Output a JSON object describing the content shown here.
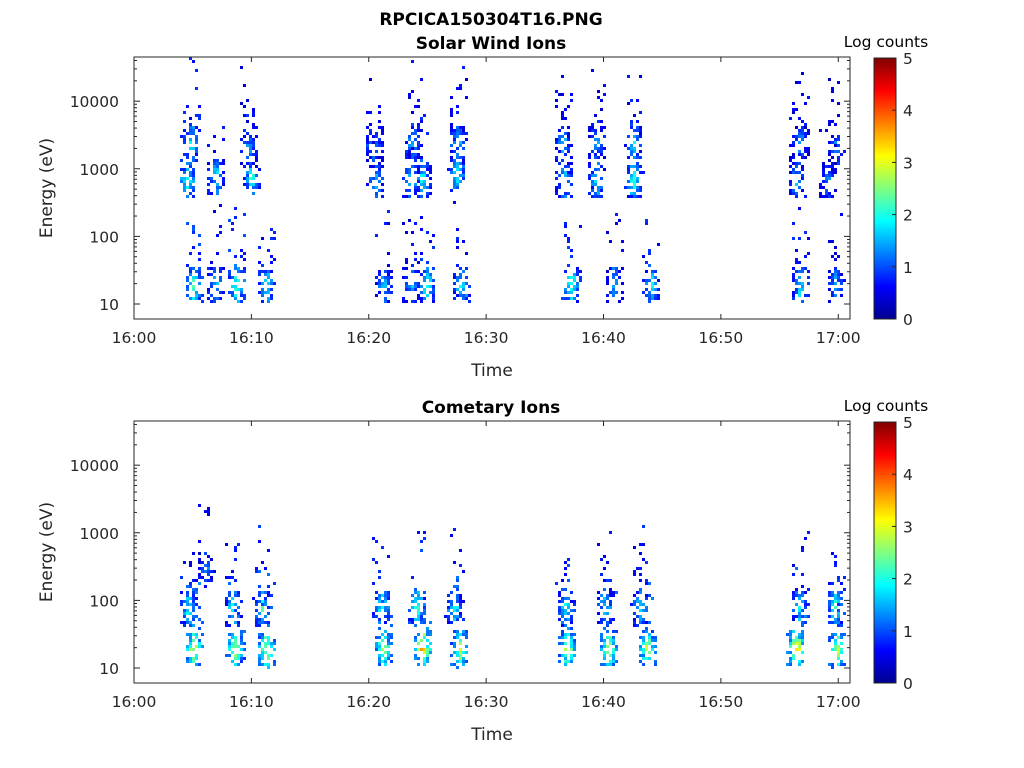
{
  "figure": {
    "title": "RPCICA150304T16.PNG"
  },
  "colorbar_ticks": [
    "0",
    "1",
    "2",
    "3",
    "4",
    "5"
  ],
  "chart_data": [
    {
      "type": "heatmap",
      "title": "Solar Wind Ions",
      "xlabel": "Time",
      "ylabel": "Energy (eV)",
      "colorbar_label": "Log counts",
      "colorbar_range": [
        0,
        5
      ],
      "colormap": "jet",
      "y_scale": "log",
      "ylim": [
        6,
        45000
      ],
      "xlim": [
        "16:00",
        "17:01"
      ],
      "x_ticks": [
        "16:00",
        "16:10",
        "16:20",
        "16:30",
        "16:40",
        "16:50",
        "17:00"
      ],
      "y_ticks": [
        "10",
        "100",
        "1000",
        "10000"
      ],
      "clusters": [
        {
          "t": "16:04:25",
          "energy": 700,
          "level": 2.2
        },
        {
          "t": "16:04:50",
          "energy": 2500,
          "level": 2.0
        },
        {
          "t": "16:06:55",
          "energy": 800,
          "level": 1.8
        },
        {
          "t": "16:09:55",
          "energy": 750,
          "level": 2.2
        },
        {
          "t": "16:09:40",
          "energy": 2000,
          "level": 1.6
        },
        {
          "t": "16:05:00",
          "energy": 20,
          "level": 2.5
        },
        {
          "t": "16:06:50",
          "energy": 20,
          "level": 1.8
        },
        {
          "t": "16:08:40",
          "energy": 20,
          "level": 2.4
        },
        {
          "t": "16:11:10",
          "energy": 20,
          "level": 2.0
        },
        {
          "t": "16:20:30",
          "energy": 700,
          "level": 1.6
        },
        {
          "t": "16:20:20",
          "energy": 2500,
          "level": 1.5
        },
        {
          "t": "16:23:30",
          "energy": 700,
          "level": 1.8
        },
        {
          "t": "16:24:30",
          "energy": 700,
          "level": 2.0
        },
        {
          "t": "16:23:40",
          "energy": 2500,
          "level": 1.7
        },
        {
          "t": "16:27:25",
          "energy": 900,
          "level": 2.0
        },
        {
          "t": "16:27:30",
          "energy": 2500,
          "level": 1.8
        },
        {
          "t": "16:21:10",
          "energy": 20,
          "level": 1.8
        },
        {
          "t": "16:23:30",
          "energy": 20,
          "level": 1.6
        },
        {
          "t": "16:24:50",
          "energy": 20,
          "level": 2.2
        },
        {
          "t": "16:27:50",
          "energy": 20,
          "level": 2.0
        },
        {
          "t": "16:36:30",
          "energy": 700,
          "level": 1.8
        },
        {
          "t": "16:36:30",
          "energy": 2500,
          "level": 1.7
        },
        {
          "t": "16:39:20",
          "energy": 700,
          "level": 1.9
        },
        {
          "t": "16:39:20",
          "energy": 2500,
          "level": 1.6
        },
        {
          "t": "16:42:30",
          "energy": 700,
          "level": 2.2
        },
        {
          "t": "16:42:30",
          "energy": 2500,
          "level": 1.8
        },
        {
          "t": "16:37:10",
          "energy": 20,
          "level": 2.3
        },
        {
          "t": "16:40:50",
          "energy": 20,
          "level": 1.7
        },
        {
          "t": "16:44:00",
          "energy": 20,
          "level": 2.0
        },
        {
          "t": "16:56:20",
          "energy": 700,
          "level": 1.6
        },
        {
          "t": "16:56:40",
          "energy": 2500,
          "level": 1.5
        },
        {
          "t": "16:59:00",
          "energy": 700,
          "level": 1.3
        },
        {
          "t": "16:59:40",
          "energy": 2000,
          "level": 1.4
        },
        {
          "t": "16:56:40",
          "energy": 20,
          "level": 2.0
        },
        {
          "t": "16:59:40",
          "energy": 20,
          "level": 1.6
        }
      ]
    },
    {
      "type": "heatmap",
      "title": "Cometary Ions",
      "xlabel": "Time",
      "ylabel": "Energy (eV)",
      "colorbar_label": "Log counts",
      "colorbar_range": [
        0,
        5
      ],
      "colormap": "jet",
      "y_scale": "log",
      "ylim": [
        6,
        45000
      ],
      "xlim": [
        "16:00",
        "17:01"
      ],
      "x_ticks": [
        "16:00",
        "16:10",
        "16:20",
        "16:30",
        "16:40",
        "16:50",
        "17:00"
      ],
      "y_ticks": [
        "10",
        "100",
        "1000",
        "10000"
      ],
      "clusters": [
        {
          "t": "16:05:00",
          "energy": 20,
          "level": 3.2
        },
        {
          "t": "16:04:30",
          "energy": 80,
          "level": 2.0
        },
        {
          "t": "16:06:00",
          "energy": 300,
          "level": 1.3
        },
        {
          "t": "16:08:30",
          "energy": 20,
          "level": 3.0
        },
        {
          "t": "16:08:20",
          "energy": 80,
          "level": 2.0
        },
        {
          "t": "16:11:10",
          "energy": 20,
          "level": 3.0
        },
        {
          "t": "16:10:50",
          "energy": 80,
          "level": 2.2
        },
        {
          "t": "16:21:10",
          "energy": 20,
          "level": 3.0
        },
        {
          "t": "16:21:00",
          "energy": 80,
          "level": 2.2
        },
        {
          "t": "16:24:30",
          "energy": 20,
          "level": 3.6
        },
        {
          "t": "16:24:00",
          "energy": 80,
          "level": 2.4
        },
        {
          "t": "16:27:40",
          "energy": 20,
          "level": 3.0
        },
        {
          "t": "16:27:10",
          "energy": 80,
          "level": 2.0
        },
        {
          "t": "16:36:50",
          "energy": 20,
          "level": 3.0
        },
        {
          "t": "16:36:40",
          "energy": 80,
          "level": 2.0
        },
        {
          "t": "16:40:20",
          "energy": 20,
          "level": 3.0
        },
        {
          "t": "16:40:00",
          "energy": 80,
          "level": 2.0
        },
        {
          "t": "16:43:40",
          "energy": 20,
          "level": 3.0
        },
        {
          "t": "16:43:00",
          "energy": 80,
          "level": 2.0
        },
        {
          "t": "16:56:20",
          "energy": 20,
          "level": 3.5
        },
        {
          "t": "16:56:40",
          "energy": 80,
          "level": 2.0
        },
        {
          "t": "16:59:50",
          "energy": 20,
          "level": 3.0
        },
        {
          "t": "16:59:40",
          "energy": 80,
          "level": 2.2
        }
      ]
    }
  ]
}
